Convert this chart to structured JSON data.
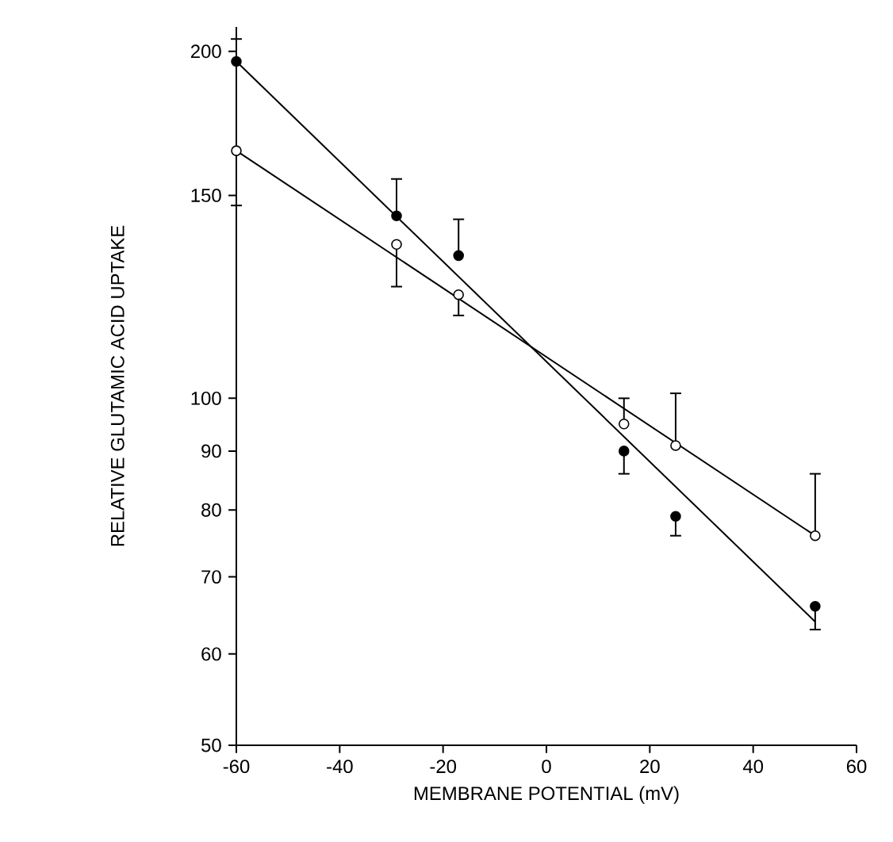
{
  "chart_data": {
    "type": "scatter",
    "xlabel": "MEMBRANE POTENTIAL (mV)",
    "ylabel": "RELATIVE GLUTAMIC ACID UPTAKE",
    "log": "y",
    "grid": false,
    "x": [
      -60,
      -29,
      -17,
      15,
      25,
      52
    ],
    "xlim": [
      -60,
      60
    ],
    "xticks": [
      -60,
      -40,
      -20,
      0,
      20,
      40,
      60
    ],
    "ylim": [
      50,
      210
    ],
    "yticks": [
      50,
      60,
      70,
      80,
      90,
      100,
      150,
      200
    ],
    "series": [
      {
        "type": "scatter",
        "marker": "circle",
        "color": "#000000",
        "values": [
          196,
          144,
          133,
          90,
          79,
          66
        ],
        "errors": [
          [
            196,
            205
          ],
          [
            144,
            155
          ],
          [
            133,
            143
          ],
          [
            86,
            90
          ],
          [
            76,
            79
          ],
          [
            63,
            66
          ]
        ]
      },
      {
        "type": "scatter",
        "marker": "circle",
        "color": "#ffffff",
        "values": [
          164,
          136,
          123,
          95,
          91,
          76
        ],
        "errors": [
          [
            147,
            164
          ],
          [
            125,
            136
          ],
          [
            118,
            123
          ],
          [
            95,
            100
          ],
          [
            91,
            101
          ],
          [
            76,
            86
          ]
        ]
      },
      {
        "type": "line",
        "color": "#000000",
        "values": [
          196,
          null,
          null,
          null,
          null,
          64
        ],
        "line_style": "solid",
        "marker": "none"
      },
      {
        "type": "line",
        "color": "#000000",
        "values": [
          164,
          null,
          null,
          null,
          null,
          76
        ],
        "line_style": "solid",
        "marker": "none"
      }
    ]
  }
}
